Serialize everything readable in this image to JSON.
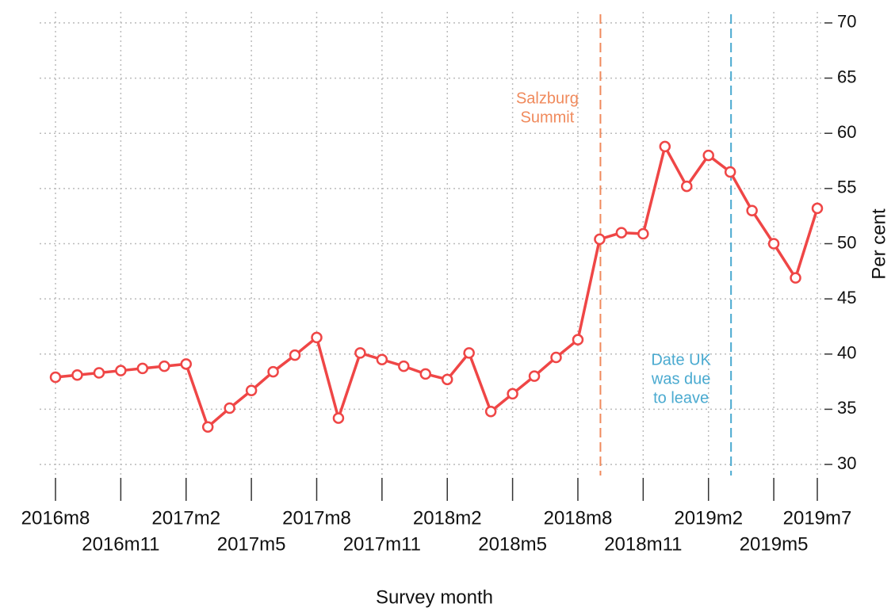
{
  "chart_data": {
    "type": "line",
    "x_label": "Survey month",
    "y_label": "Per cent",
    "categories": [
      "2016m8",
      null,
      null,
      "2016m11",
      null,
      null,
      "2017m2",
      null,
      null,
      "2017m5",
      null,
      null,
      "2017m8",
      null,
      null,
      "2017m11",
      null,
      null,
      "2018m2",
      null,
      null,
      "2018m5",
      null,
      null,
      "2018m8",
      null,
      null,
      "2018m11",
      null,
      null,
      "2019m2",
      null,
      null,
      "2019m5",
      null,
      "2019m7"
    ],
    "series": [
      {
        "name": "Per cent",
        "color": "#ef4646",
        "values": [
          37.9,
          38.1,
          38.3,
          38.5,
          38.7,
          38.9,
          39.1,
          33.4,
          35.1,
          36.7,
          38.4,
          39.9,
          41.5,
          34.2,
          40.1,
          39.5,
          38.9,
          38.2,
          37.7,
          40.1,
          34.8,
          36.4,
          38.0,
          39.7,
          41.3,
          50.4,
          51.0,
          50.9,
          58.8,
          55.2,
          58.0,
          56.5,
          53.0,
          50.0,
          46.9,
          53.2
        ]
      }
    ],
    "ylim": [
      29,
      71
    ],
    "yticks": [
      30,
      35,
      40,
      45,
      50,
      55,
      60,
      65,
      70
    ],
    "grid": true,
    "annotations": [
      {
        "index": 25,
        "lines": [
          "Salzburg",
          "Summit"
        ],
        "color": "#f08a5c"
      },
      {
        "index": 31,
        "lines": [
          "Date UK",
          "was due",
          "to leave"
        ],
        "color": "#4aaad0"
      }
    ]
  }
}
